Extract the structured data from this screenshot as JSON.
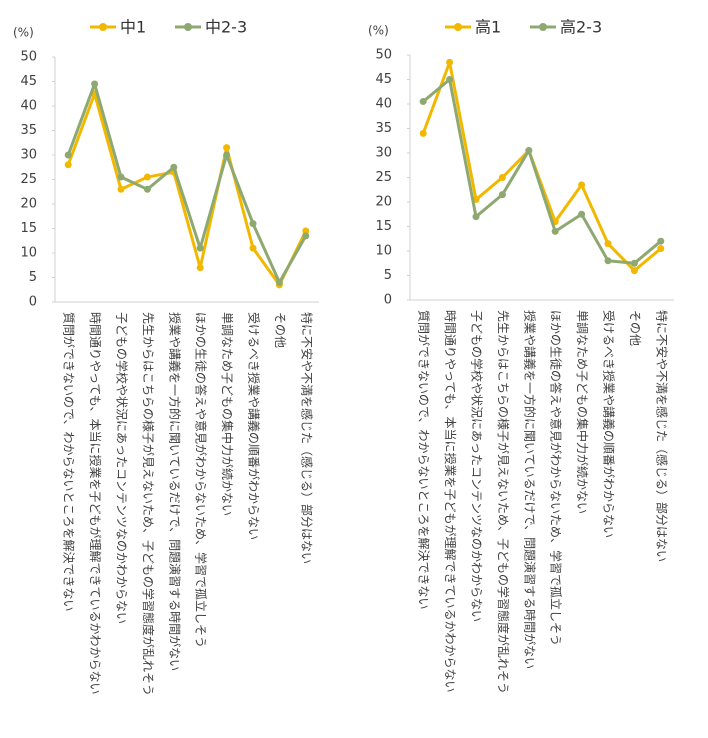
{
  "chart_data": [
    {
      "type": "line",
      "y_label": "(%)",
      "categories": [
        "質問ができないので、わからないところを解決できない",
        "時間通りやっても、本当に授業を子どもが理解できているかわからない",
        "子どもの学校や状況にあったコンテンツなのかわからない",
        "先生からはこちらの様子が見えないため、子どもの学習態度が乱れそう",
        "授業や講義を一方的に聞いているだけで、問題演習する時間がない",
        "ほかの生徒の答えや意見がわからないため、学習で孤立しそう",
        "単調なため子どもの集中力が続かない",
        "受けるべき授業や講義の順番がわからない",
        "その他",
        "特に不安や不満を感じた（感じる）部分はない"
      ],
      "series": [
        {
          "name": "中1",
          "color": "#f2b800",
          "values": [
            28,
            42.5,
            23,
            25.5,
            26.5,
            7,
            31.5,
            11,
            3.5,
            14.5
          ]
        },
        {
          "name": "中2-3",
          "color": "#8ea872",
          "values": [
            30,
            44.5,
            25.5,
            23,
            27.5,
            11,
            30,
            16,
            4,
            13.5
          ]
        }
      ],
      "ylim": [
        0,
        50
      ],
      "yticks": [
        0,
        5,
        10,
        15,
        20,
        25,
        30,
        35,
        40,
        45,
        50
      ],
      "grid": false
    },
    {
      "type": "line",
      "y_label": "(%)",
      "categories": [
        "質問ができないので、わからないところを解決できない",
        "時間通りやっても、本当に授業を子どもが理解できているかわからない",
        "子どもの学校や状況にあったコンテンツなのかわからない",
        "先生からはこちらの様子が見えないため、子どもの学習態度が乱れそう",
        "授業や講義を一方的に聞いているだけで、問題演習する時間がない",
        "ほかの生徒の答えや意見がわからないため、学習で孤立しそう",
        "単調なため子どもの集中力が続かない",
        "受けるべき授業や講義の順番がわからない",
        "その他",
        "特に不安や不満を感じた（感じる）部分はない"
      ],
      "series": [
        {
          "name": "高1",
          "color": "#f2b800",
          "values": [
            34,
            48.5,
            20.5,
            25,
            30.5,
            16,
            23.5,
            11.5,
            6,
            10.5
          ]
        },
        {
          "name": "高2-3",
          "color": "#8ea872",
          "values": [
            40.5,
            45,
            17,
            21.5,
            30.5,
            14,
            17.5,
            8,
            7.5,
            12
          ]
        }
      ],
      "ylim": [
        0,
        50
      ],
      "yticks": [
        0,
        5,
        10,
        15,
        20,
        25,
        30,
        35,
        40,
        45,
        50
      ],
      "grid": false
    }
  ]
}
